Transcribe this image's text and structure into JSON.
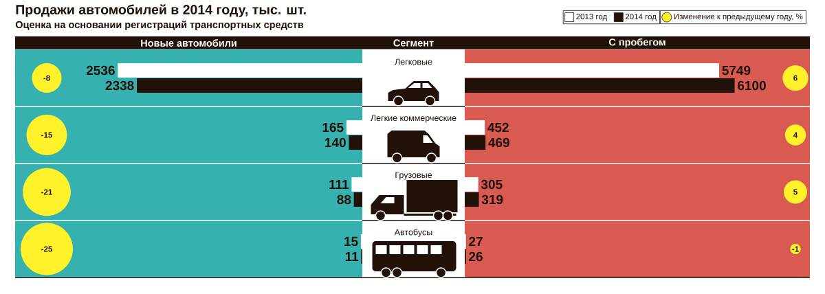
{
  "chart_data": [
    {
      "type": "bar",
      "orientation": "horizontal",
      "title": "Продажи автомобилей в 2014 году, тыс. шт.",
      "subtitle": "Оценка на основании регистраций транспортных средств",
      "xlabel": "Новые автомобили",
      "ylabel": "Сегмент",
      "categories": [
        "Легковые",
        "Легкие коммерческие",
        "Грузовые",
        "Автобусы"
      ],
      "series": [
        {
          "color": "#ffffff",
          "values": [
            2536,
            165,
            111,
            15
          ]
        },
        {
          "color": "#211108",
          "values": [
            2338,
            140,
            88,
            11
          ]
        }
      ],
      "xlim": [
        3600,
        0
      ],
      "data_labels": true,
      "tick_labels": "y"
    },
    {
      "type": "bar",
      "orientation": "horizontal",
      "xlabel": "С пробегом",
      "categories": [
        null,
        null,
        null,
        null
      ],
      "series": [
        {
          "name": "2013 год",
          "color": "#ffffff",
          "values": [
            5749,
            452,
            305,
            27
          ]
        },
        {
          "name": "2014 год",
          "color": "#211108",
          "values": [
            6100,
            469,
            319,
            26
          ]
        }
      ],
      "xlim": [
        0,
        7800
      ],
      "data_labels": true,
      "legend": "top left"
    },
    {
      "type": "other",
      "series": [
        {
          "color": "#fff22b",
          "values": [
            -8,
            -15,
            -21,
            -25
          ]
        }
      ],
      "data_labels": true
    },
    {
      "type": "other",
      "series": [
        {
          "name": "Изменение к предыдущему году, %",
          "color": "#fff22b",
          "values": [
            6,
            4,
            5,
            -1
          ]
        }
      ],
      "data_labels": true,
      "legend": "top left"
    }
  ]
}
